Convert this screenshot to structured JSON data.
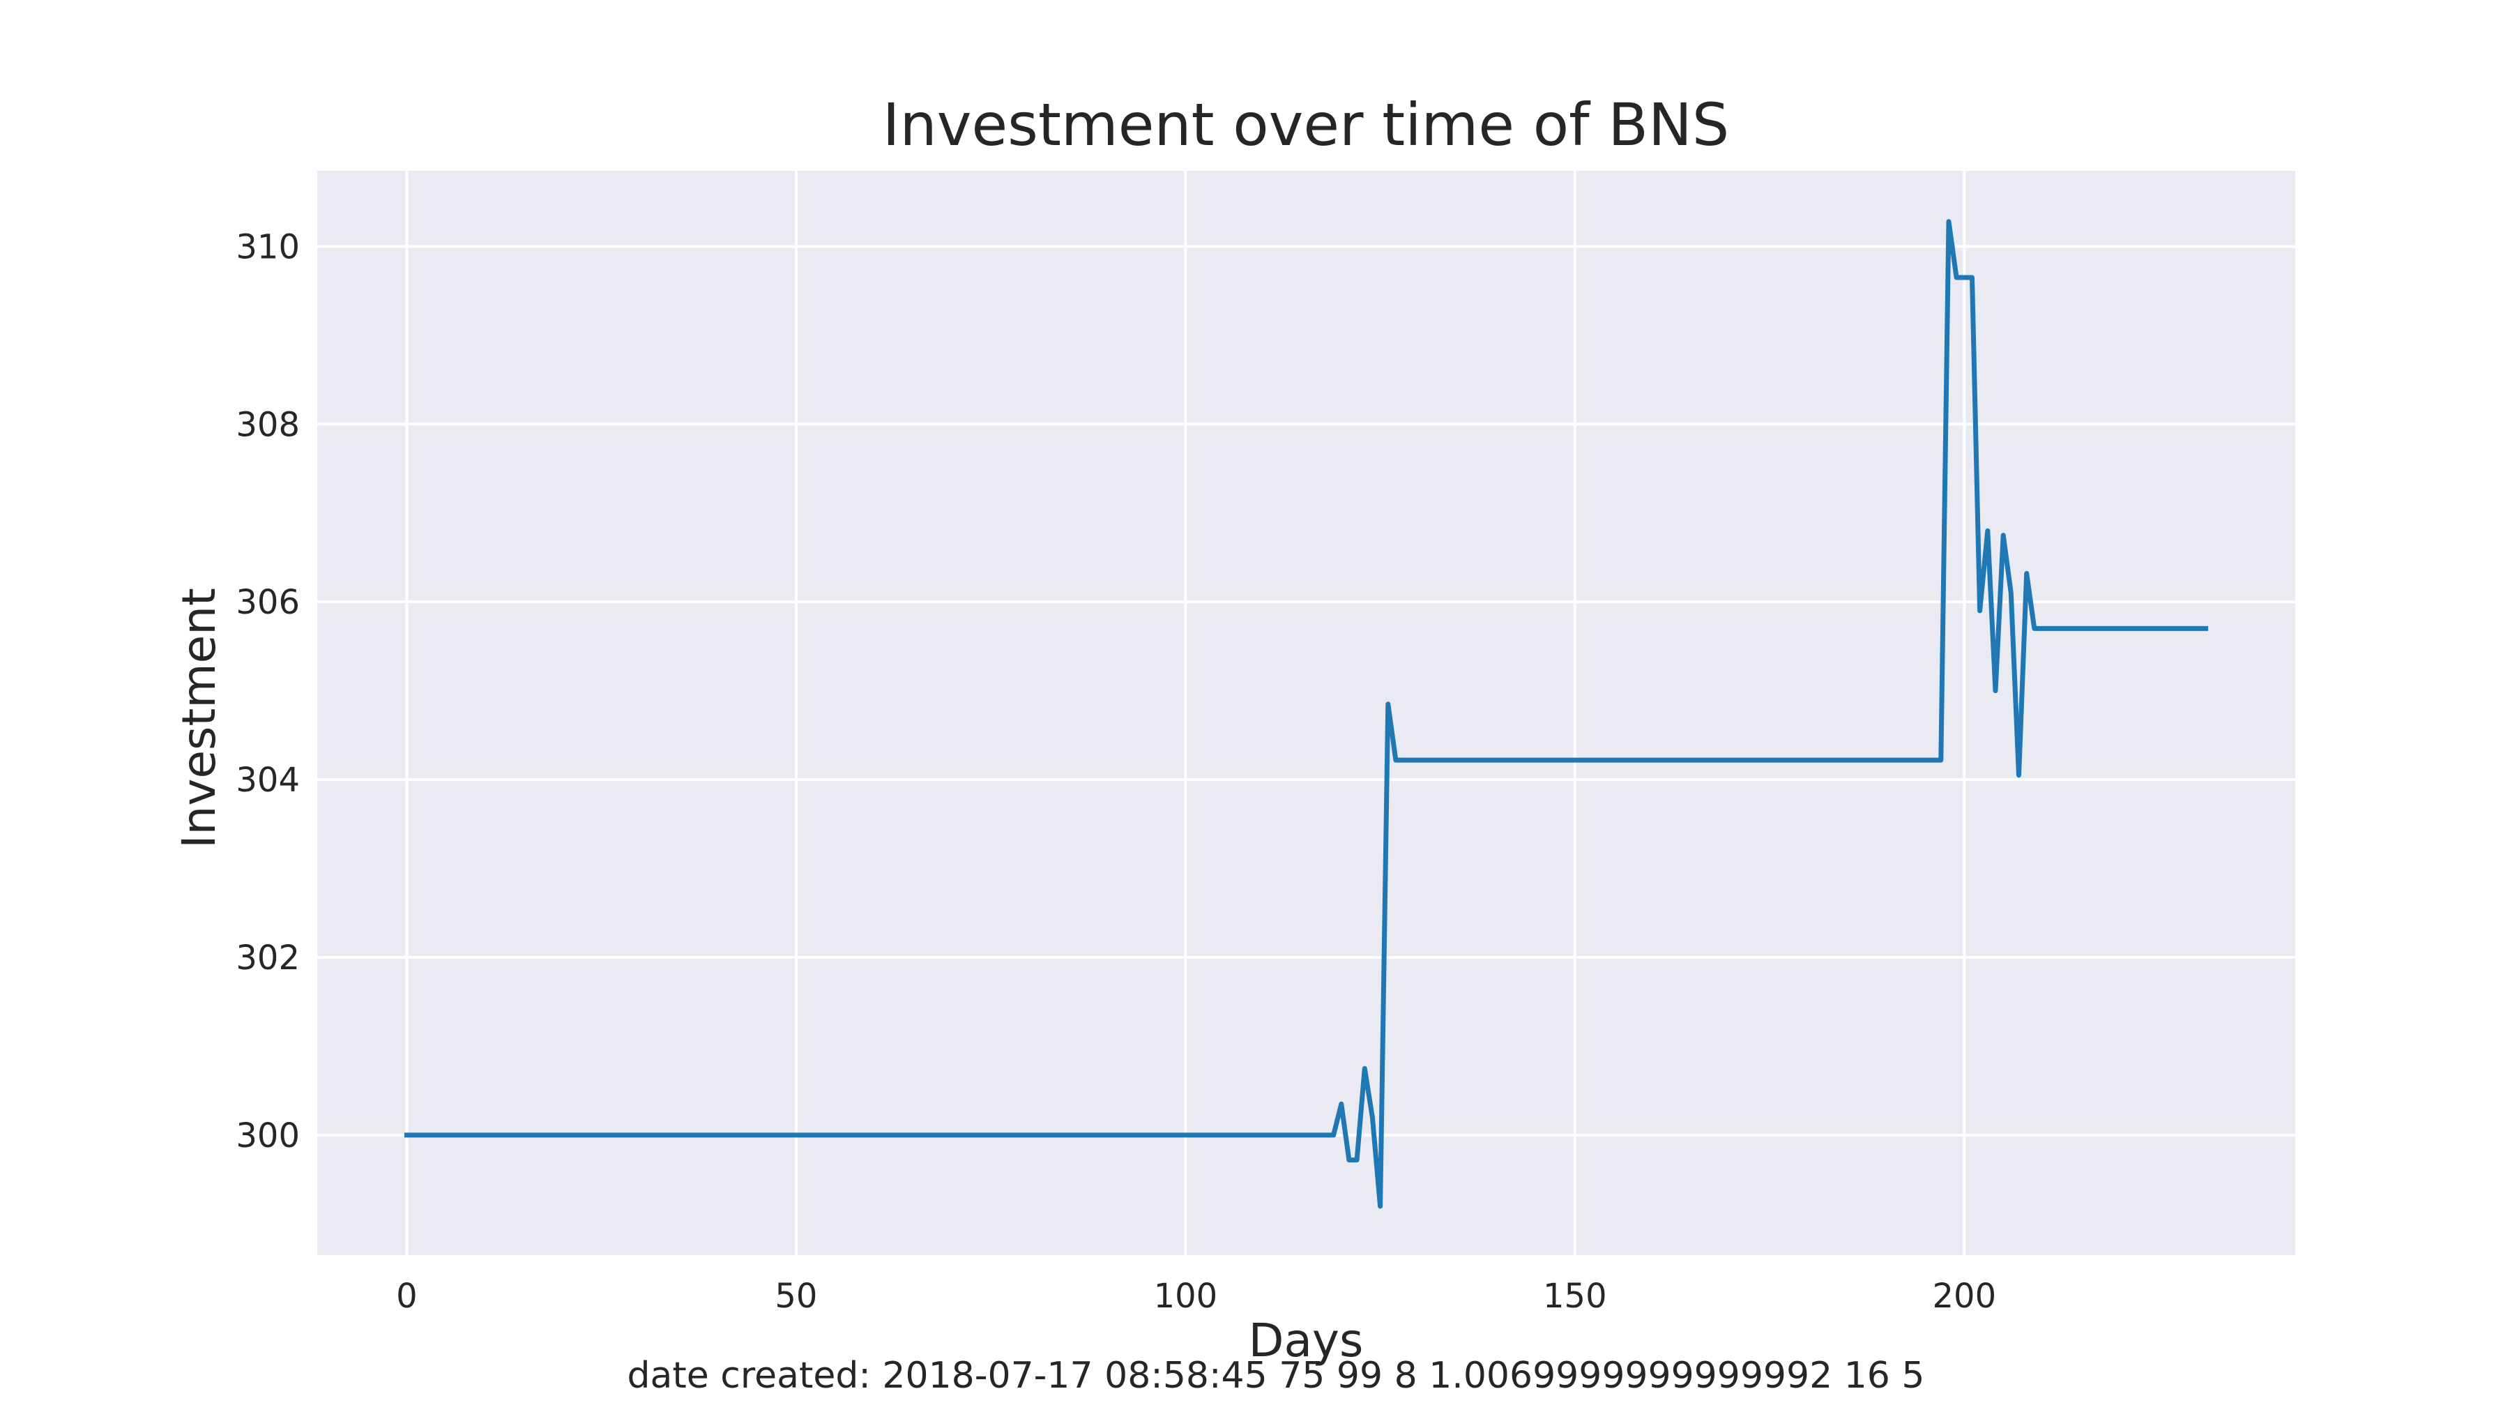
{
  "chart_data": {
    "type": "line",
    "title": "Investment over time of BNS",
    "xlabel": "Days",
    "ylabel": "Investment",
    "xlim": [
      -11.5,
      242.5
    ],
    "ylim": [
      298.65,
      310.85
    ],
    "xticks": [
      0,
      50,
      100,
      150,
      200
    ],
    "yticks": [
      300,
      302,
      304,
      306,
      308,
      310
    ],
    "grid": true,
    "colors": {
      "background": "#eaeaf2",
      "grid": "#ffffff",
      "line": "#1f77b4",
      "text": "#262626"
    },
    "footer": "date created: 2018-07-17 08:58:45 75 99 8 1.0069999999999992 16 5",
    "series": [
      {
        "points": [
          [
            0,
            300.0
          ],
          [
            119,
            300.0
          ],
          [
            120,
            300.35
          ],
          [
            121,
            299.72
          ],
          [
            122,
            299.72
          ],
          [
            123,
            300.75
          ],
          [
            124,
            300.2
          ],
          [
            125,
            299.2
          ],
          [
            126,
            304.85
          ],
          [
            127,
            304.22
          ],
          [
            197,
            304.22
          ],
          [
            198,
            310.28
          ],
          [
            199,
            309.65
          ],
          [
            201,
            309.65
          ],
          [
            202,
            305.9
          ],
          [
            203,
            306.8
          ],
          [
            204,
            305.0
          ],
          [
            205,
            306.75
          ],
          [
            206,
            306.1
          ],
          [
            207,
            304.05
          ],
          [
            208,
            306.32
          ],
          [
            209,
            305.7
          ],
          [
            231,
            305.7
          ]
        ]
      }
    ]
  }
}
